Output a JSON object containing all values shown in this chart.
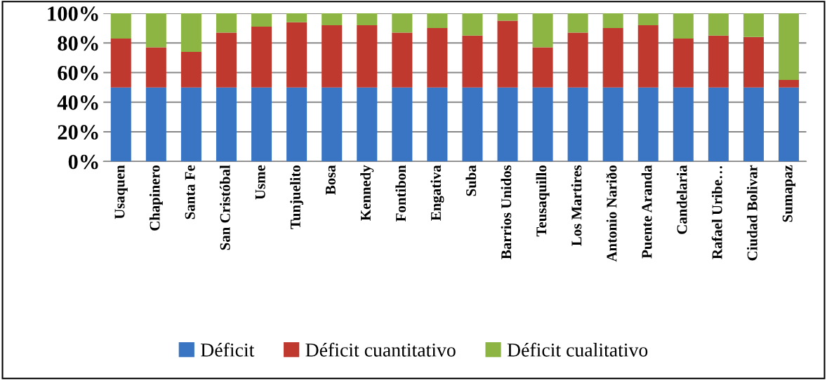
{
  "chart_data": {
    "type": "bar",
    "stacked": true,
    "categories": [
      "Usaquen",
      "Chapinero",
      "Santa Fe",
      "San Cristóbal",
      "Usme",
      "Tunjuelito",
      "Bosa",
      "Kennedy",
      "Fontibon",
      "Engativa",
      "Suba",
      "Barrios Unidos",
      "Teusaquillo",
      "Los Martires",
      "Antonio Nariðo",
      "Puente Aranda",
      "Candelaria",
      "Rafael Uribe…",
      "Ciudad Bolivar",
      "Sumapaz"
    ],
    "series": [
      {
        "name": "Déficit",
        "color": "#3a75c4",
        "values": [
          50,
          50,
          50,
          50,
          50,
          50,
          50,
          50,
          50,
          50,
          50,
          50,
          50,
          50,
          50,
          50,
          50,
          50,
          50,
          50
        ]
      },
      {
        "name": "Déficit cuantitativo",
        "color": "#c0392f",
        "values": [
          33,
          27,
          24,
          37,
          41,
          44,
          42,
          42,
          37,
          40,
          35,
          45,
          27,
          37,
          40,
          42,
          33,
          35,
          34,
          5
        ]
      },
      {
        "name": "Déficit cualitativo",
        "color": "#8cb543",
        "values": [
          17,
          23,
          26,
          13,
          9,
          6,
          8,
          8,
          13,
          10,
          15,
          5,
          23,
          13,
          10,
          8,
          17,
          15,
          16,
          45
        ]
      }
    ],
    "ylim": [
      0,
      100
    ],
    "yticks": [
      {
        "value": 0,
        "label": "0%"
      },
      {
        "value": 20,
        "label": "20%"
      },
      {
        "value": 40,
        "label": "40%"
      },
      {
        "value": 60,
        "label": "60%"
      },
      {
        "value": 80,
        "label": "80%"
      },
      {
        "value": 100,
        "label": "100%"
      }
    ],
    "grid": "y",
    "legend": "bottom"
  }
}
